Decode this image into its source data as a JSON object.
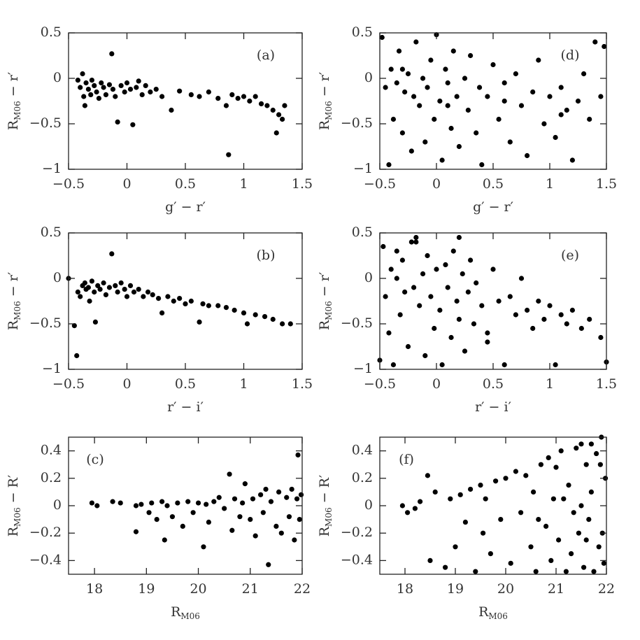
{
  "chart_data": [
    {
      "type": "scatter",
      "annotation": "(a)",
      "annotation_position": "upper right",
      "color": "#000000",
      "xlabel": [
        "g′ − r′"
      ],
      "ylabel": [
        "R",
        "M06",
        " − r′"
      ],
      "xlim": [
        -0.5,
        1.5
      ],
      "ylim": [
        -1,
        0.5
      ],
      "xticks": [
        {
          "value": -0.5,
          "label": "−0.5"
        },
        0,
        0.5,
        1,
        1.5
      ],
      "yticks": [
        {
          "value": -1,
          "label": "−1"
        },
        {
          "value": -0.5,
          "label": "−0.5"
        },
        0,
        0.5
      ],
      "x": [
        -0.42,
        -0.4,
        -0.38,
        -0.37,
        -0.36,
        -0.35,
        -0.33,
        -0.31,
        -0.3,
        -0.28,
        -0.26,
        -0.24,
        -0.22,
        -0.2,
        -0.18,
        -0.15,
        -0.13,
        -0.12,
        -0.1,
        -0.08,
        -0.05,
        -0.02,
        0.0,
        0.03,
        0.05,
        0.08,
        0.1,
        0.13,
        0.16,
        0.2,
        0.25,
        0.3,
        0.38,
        0.45,
        0.55,
        0.62,
        0.7,
        0.78,
        0.85,
        0.87,
        0.9,
        0.95,
        1.0,
        1.05,
        1.1,
        1.15,
        1.2,
        1.25,
        1.28,
        1.3,
        1.33,
        1.35
      ],
      "y": [
        -0.02,
        -0.1,
        0.05,
        -0.2,
        -0.3,
        -0.05,
        -0.12,
        -0.18,
        -0.02,
        -0.08,
        -0.15,
        -0.22,
        -0.05,
        -0.1,
        -0.18,
        -0.07,
        0.27,
        -0.12,
        -0.2,
        -0.48,
        -0.08,
        -0.15,
        -0.05,
        -0.12,
        -0.51,
        -0.1,
        -0.03,
        -0.18,
        -0.08,
        -0.15,
        -0.12,
        -0.2,
        -0.35,
        -0.14,
        -0.18,
        -0.2,
        -0.15,
        -0.22,
        -0.3,
        -0.84,
        -0.18,
        -0.22,
        -0.2,
        -0.25,
        -0.2,
        -0.28,
        -0.3,
        -0.35,
        -0.6,
        -0.4,
        -0.45,
        -0.3
      ]
    },
    {
      "type": "scatter",
      "annotation": "(b)",
      "annotation_position": "upper right",
      "color": "#000000",
      "xlabel": [
        "r′ − i′"
      ],
      "ylabel": [
        "R",
        "M06",
        " − r′"
      ],
      "xlim": [
        -0.5,
        1.5
      ],
      "ylim": [
        -1,
        0.5
      ],
      "xticks": [
        {
          "value": -0.5,
          "label": "−0.5"
        },
        0,
        0.5,
        1,
        1.5
      ],
      "yticks": [
        {
          "value": -1,
          "label": "−1"
        },
        {
          "value": -0.5,
          "label": "−0.5"
        },
        0,
        0.5
      ],
      "x": [
        -0.5,
        -0.45,
        -0.43,
        -0.42,
        -0.4,
        -0.38,
        -0.36,
        -0.35,
        -0.33,
        -0.32,
        -0.3,
        -0.28,
        -0.27,
        -0.25,
        -0.23,
        -0.2,
        -0.18,
        -0.15,
        -0.13,
        -0.1,
        -0.08,
        -0.05,
        -0.02,
        0.0,
        0.03,
        0.06,
        0.1,
        0.14,
        0.18,
        0.22,
        0.27,
        0.3,
        0.35,
        0.4,
        0.45,
        0.5,
        0.55,
        0.62,
        0.65,
        0.7,
        0.78,
        0.85,
        0.92,
        1.0,
        1.03,
        1.1,
        1.18,
        1.25,
        1.33,
        1.4
      ],
      "y": [
        0.0,
        -0.52,
        -0.85,
        -0.15,
        -0.2,
        -0.08,
        -0.05,
        -0.12,
        -0.1,
        -0.25,
        -0.03,
        -0.15,
        -0.48,
        -0.08,
        -0.12,
        -0.05,
        -0.18,
        -0.1,
        0.27,
        -0.08,
        -0.15,
        -0.05,
        -0.12,
        -0.2,
        -0.08,
        -0.15,
        -0.12,
        -0.2,
        -0.15,
        -0.18,
        -0.22,
        -0.38,
        -0.2,
        -0.25,
        -0.22,
        -0.28,
        -0.25,
        -0.48,
        -0.28,
        -0.3,
        -0.3,
        -0.32,
        -0.35,
        -0.38,
        -0.5,
        -0.4,
        -0.42,
        -0.45,
        -0.5,
        -0.5
      ]
    },
    {
      "type": "scatter",
      "annotation": "(c)",
      "annotation_position": "upper left",
      "color": "#000000",
      "xlabel": [
        "R",
        "M06"
      ],
      "ylabel": [
        "R",
        "M06",
        " − R′"
      ],
      "xlim": [
        17.5,
        22
      ],
      "ylim": [
        -0.5,
        0.5
      ],
      "xticks": [
        18,
        19,
        20,
        21,
        22
      ],
      "yticks": [
        {
          "value": -0.4,
          "label": "−0.4"
        },
        {
          "value": -0.2,
          "label": "−0.2"
        },
        0,
        0.2,
        0.4
      ],
      "x": [
        17.95,
        18.05,
        18.35,
        18.5,
        18.8,
        18.8,
        18.9,
        19.05,
        19.1,
        19.2,
        19.3,
        19.35,
        19.4,
        19.5,
        19.6,
        19.7,
        19.8,
        19.9,
        20.0,
        20.1,
        20.15,
        20.2,
        20.3,
        20.4,
        20.5,
        20.6,
        20.65,
        20.7,
        20.8,
        20.85,
        20.9,
        21.0,
        21.05,
        21.1,
        21.2,
        21.25,
        21.3,
        21.35,
        21.4,
        21.5,
        21.55,
        21.6,
        21.7,
        21.75,
        21.8,
        21.85,
        21.9,
        21.92,
        21.95,
        21.98
      ],
      "y": [
        0.02,
        0.0,
        0.03,
        0.02,
        0.0,
        -0.19,
        0.01,
        -0.05,
        0.02,
        -0.1,
        0.03,
        -0.25,
        0.0,
        -0.08,
        0.02,
        -0.15,
        0.03,
        -0.05,
        0.02,
        -0.3,
        0.01,
        -0.12,
        0.03,
        0.06,
        -0.02,
        0.23,
        -0.18,
        0.05,
        -0.08,
        0.02,
        0.16,
        -0.1,
        0.05,
        -0.22,
        0.08,
        -0.05,
        0.12,
        -0.43,
        0.03,
        -0.15,
        0.1,
        -0.2,
        0.06,
        -0.08,
        0.12,
        -0.25,
        0.05,
        0.37,
        -0.1,
        0.08
      ]
    },
    {
      "type": "scatter",
      "annotation": "(d)",
      "annotation_position": "upper right",
      "color": "#000000",
      "xlabel": [
        "g′ − r′"
      ],
      "ylabel": [
        "R",
        "M06",
        " − r′"
      ],
      "xlim": [
        -0.5,
        1.5
      ],
      "ylim": [
        -1,
        0.5
      ],
      "xticks": [
        {
          "value": -0.5,
          "label": "−0.5"
        },
        0,
        0.5,
        1,
        1.5
      ],
      "yticks": [
        {
          "value": -1,
          "label": "−1"
        },
        {
          "value": -0.5,
          "label": "−0.5"
        },
        0,
        0.5
      ],
      "x": [
        -0.48,
        -0.45,
        -0.42,
        -0.4,
        -0.38,
        -0.35,
        -0.33,
        -0.3,
        -0.28,
        -0.25,
        -0.22,
        -0.2,
        -0.18,
        -0.15,
        -0.12,
        -0.1,
        -0.08,
        -0.05,
        -0.02,
        0.0,
        0.03,
        0.05,
        0.08,
        0.1,
        0.13,
        0.15,
        0.18,
        0.2,
        0.25,
        0.28,
        0.3,
        0.35,
        0.38,
        0.4,
        0.45,
        0.5,
        0.55,
        0.6,
        0.65,
        0.7,
        0.75,
        0.8,
        0.85,
        0.9,
        0.95,
        1.0,
        1.05,
        1.1,
        1.15,
        1.2,
        1.25,
        1.3,
        1.35,
        1.4,
        1.45,
        1.48,
        -0.3,
        0.1,
        0.6,
        1.1
      ],
      "y": [
        0.45,
        -0.1,
        -0.95,
        0.1,
        -0.45,
        -0.05,
        0.3,
        -0.6,
        -0.15,
        0.05,
        -0.8,
        -0.2,
        0.4,
        -0.3,
        0.0,
        -0.7,
        -0.1,
        0.2,
        -0.45,
        0.48,
        -0.25,
        -0.9,
        0.1,
        -0.05,
        -0.55,
        0.3,
        -0.2,
        -0.75,
        0.0,
        -0.35,
        0.25,
        -0.6,
        -0.1,
        -0.95,
        -0.2,
        0.15,
        -0.45,
        -0.25,
        -0.7,
        0.05,
        -0.3,
        -0.85,
        -0.15,
        0.2,
        -0.5,
        -0.2,
        -0.65,
        -0.1,
        -0.35,
        -0.9,
        -0.25,
        0.05,
        -0.45,
        0.4,
        -0.2,
        0.35,
        0.1,
        -0.3,
        -0.05,
        -0.4
      ]
    },
    {
      "type": "scatter",
      "annotation": "(e)",
      "annotation_position": "upper right",
      "color": "#000000",
      "xlabel": [
        "r′ − i′"
      ],
      "ylabel": [
        "R",
        "M06",
        " − r′"
      ],
      "xlim": [
        -0.5,
        1.5
      ],
      "ylim": [
        -1,
        0.5
      ],
      "xticks": [
        {
          "value": -0.5,
          "label": "−0.5"
        },
        0,
        0.5,
        1,
        1.5
      ],
      "yticks": [
        {
          "value": -1,
          "label": "−1"
        },
        {
          "value": -0.5,
          "label": "−0.5"
        },
        0,
        0.5
      ],
      "x": [
        -0.5,
        -0.47,
        -0.45,
        -0.42,
        -0.4,
        -0.38,
        -0.35,
        -0.32,
        -0.3,
        -0.28,
        -0.25,
        -0.22,
        -0.2,
        -0.18,
        -0.15,
        -0.12,
        -0.1,
        -0.08,
        -0.05,
        -0.02,
        0.0,
        0.03,
        0.05,
        0.08,
        0.1,
        0.13,
        0.15,
        0.18,
        0.2,
        0.23,
        0.25,
        0.28,
        0.3,
        0.33,
        0.35,
        0.4,
        0.45,
        0.5,
        0.55,
        0.6,
        0.65,
        0.7,
        0.75,
        0.8,
        0.85,
        0.9,
        0.95,
        1.0,
        1.05,
        1.1,
        1.15,
        1.2,
        1.28,
        1.35,
        1.45,
        1.5,
        -0.18,
        0.2,
        -0.35,
        0.45
      ],
      "y": [
        -0.9,
        0.35,
        -0.2,
        -0.6,
        0.1,
        -0.95,
        0.0,
        -0.4,
        0.2,
        -0.15,
        -0.75,
        0.4,
        -0.1,
        0.45,
        -0.3,
        0.05,
        -0.85,
        0.25,
        -0.2,
        -0.55,
        0.1,
        -0.35,
        -0.95,
        0.15,
        -0.1,
        -0.65,
        0.3,
        -0.25,
        -0.45,
        0.05,
        -0.8,
        -0.15,
        0.2,
        -0.5,
        -0.05,
        -0.3,
        -0.7,
        0.1,
        -0.25,
        -0.95,
        -0.2,
        -0.4,
        0.0,
        -0.35,
        -0.55,
        -0.25,
        -0.45,
        -0.3,
        -0.95,
        -0.4,
        -0.5,
        -0.35,
        -0.55,
        -0.45,
        -0.65,
        -0.92,
        0.4,
        0.45,
        0.3,
        -0.6
      ]
    },
    {
      "type": "scatter",
      "annotation": "(f)",
      "annotation_position": "upper left",
      "color": "#000000",
      "xlabel": [
        "R",
        "M06"
      ],
      "ylabel": [
        "R",
        "M06",
        " − R′"
      ],
      "xlim": [
        17.5,
        22
      ],
      "ylim": [
        -0.5,
        0.5
      ],
      "xticks": [
        18,
        19,
        20,
        21,
        22
      ],
      "yticks": [
        {
          "value": -0.4,
          "label": "−0.4"
        },
        {
          "value": -0.2,
          "label": "−0.2"
        },
        0,
        0.2,
        0.4
      ],
      "x": [
        17.95,
        18.05,
        18.2,
        18.3,
        18.45,
        18.5,
        18.6,
        18.8,
        18.9,
        19.0,
        19.1,
        19.2,
        19.3,
        19.4,
        19.5,
        19.55,
        19.6,
        19.7,
        19.8,
        19.9,
        20.0,
        20.1,
        20.2,
        20.3,
        20.4,
        20.5,
        20.55,
        20.6,
        20.7,
        20.8,
        20.85,
        20.9,
        21.0,
        21.05,
        21.1,
        21.2,
        21.25,
        21.3,
        21.4,
        21.45,
        21.5,
        21.55,
        21.6,
        21.65,
        21.7,
        21.75,
        21.8,
        21.85,
        21.9,
        21.95,
        21.98,
        20.95,
        21.35,
        21.7,
        21.92,
        20.65,
        21.15,
        21.6,
        21.88,
        21.5
      ],
      "y": [
        0.0,
        -0.05,
        -0.02,
        0.03,
        0.22,
        -0.4,
        0.1,
        -0.45,
        0.05,
        -0.3,
        0.08,
        -0.12,
        0.12,
        -0.48,
        0.15,
        -0.2,
        0.05,
        -0.35,
        0.18,
        -0.1,
        0.2,
        -0.42,
        0.25,
        -0.05,
        0.22,
        -0.3,
        0.1,
        -0.48,
        0.3,
        -0.15,
        0.35,
        -0.4,
        0.28,
        -0.25,
        0.4,
        -0.48,
        0.15,
        -0.35,
        0.42,
        -0.2,
        0.45,
        -0.45,
        0.3,
        -0.1,
        0.45,
        -0.48,
        0.38,
        -0.3,
        0.5,
        -0.42,
        0.2,
        0.05,
        -0.05,
        0.1,
        -0.2,
        -0.1,
        0.05,
        -0.25,
        0.3,
        0.0
      ]
    }
  ]
}
